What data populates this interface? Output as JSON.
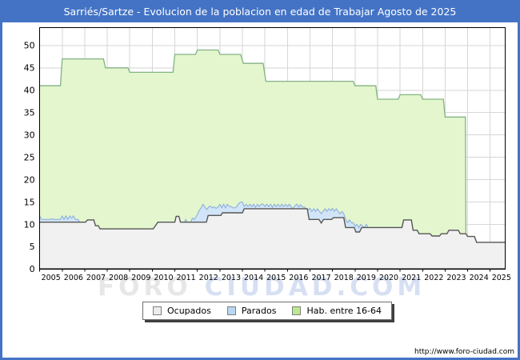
{
  "title": "Sarriés/Sartze - Evolucion de la poblacion en edad de Trabajar Agosto de 2025",
  "watermark": {
    "part1": "FORO",
    "part2": "CIUDAD.COM"
  },
  "url": "http://www.foro-ciudad.com",
  "colors": {
    "frame_blue": "#4473c5",
    "plot_border": "#000000",
    "gridline": "#d6d6d6",
    "hab_fill": "#e4f6ce",
    "hab_stroke": "#83b283",
    "parados_fill": "#d2e5f8",
    "parados_stroke": "#8cb0da",
    "ocupados_fill": "#f1f1f1",
    "ocupados_stroke": "#565656"
  },
  "legend": [
    {
      "label": "Ocupados",
      "color": "#ececec"
    },
    {
      "label": "Parados",
      "color": "#b9d6f2"
    },
    {
      "label": "Hab. entre 16-64",
      "color": "#bbe88e"
    }
  ],
  "chart_data": {
    "type": "area",
    "title": "Sarriés/Sartze - Evolucion de la poblacion en edad de Trabajar Agosto de 2025",
    "xlabel": "",
    "ylabel": "",
    "grid": true,
    "legend_position": "bottom",
    "x_axis": {
      "min": 2005,
      "max": 2025.67,
      "tick_labels": [
        2005,
        2006,
        2007,
        2008,
        2009,
        2010,
        2011,
        2012,
        2013,
        2014,
        2015,
        2016,
        2017,
        2018,
        2019,
        2020,
        2021,
        2022,
        2023,
        2024,
        2025
      ]
    },
    "y_axis": {
      "min": 0,
      "max": 54,
      "ticks": [
        0,
        5,
        10,
        15,
        20,
        25,
        30,
        35,
        40,
        45,
        50
      ]
    },
    "series": [
      {
        "name": "Hab. entre 16-64",
        "role": "area",
        "fill": "#e4f6ce",
        "stroke": "#83b283",
        "stroke_width": 1.3,
        "points": [
          [
            2005,
            41
          ],
          [
            2005.92,
            41
          ],
          [
            2006,
            47
          ],
          [
            2007.83,
            47
          ],
          [
            2007.92,
            45
          ],
          [
            2008.92,
            45
          ],
          [
            2009,
            44
          ],
          [
            2010.92,
            44
          ],
          [
            2011,
            48
          ],
          [
            2011.92,
            48
          ],
          [
            2012,
            49
          ],
          [
            2012.92,
            49
          ],
          [
            2013,
            48
          ],
          [
            2013.92,
            48
          ],
          [
            2014.04,
            46
          ],
          [
            2014.92,
            46
          ],
          [
            2015.04,
            42
          ],
          [
            2018.92,
            42
          ],
          [
            2019,
            41
          ],
          [
            2019.92,
            41
          ],
          [
            2020,
            38
          ],
          [
            2020.92,
            38
          ],
          [
            2021,
            39
          ],
          [
            2021.92,
            39
          ],
          [
            2022,
            38
          ],
          [
            2022.92,
            38
          ],
          [
            2023,
            34
          ],
          [
            2023.9,
            34
          ],
          [
            2023.93,
            0
          ]
        ]
      },
      {
        "name": "Parados",
        "role": "stacked-top-over-ocupados",
        "fill": "#d2e5f8",
        "stroke": "#8cb0da",
        "stroke_width": 1.1,
        "points": [
          [
            2005,
            11.9
          ],
          [
            2005.08,
            11.1
          ],
          [
            2005.5,
            11.1
          ],
          [
            2005.56,
            11.3
          ],
          [
            2005.64,
            11.1
          ],
          [
            2005.92,
            11.1
          ],
          [
            2006,
            11.9
          ],
          [
            2006.08,
            11.1
          ],
          [
            2006.16,
            11.9
          ],
          [
            2006.25,
            11.1
          ],
          [
            2006.33,
            11.9
          ],
          [
            2006.42,
            11.4
          ],
          [
            2006.5,
            11.9
          ],
          [
            2006.58,
            11.1
          ],
          [
            2006.7,
            11.1
          ],
          [
            2006.78,
            10.5
          ],
          [
            2007.04,
            10.5
          ],
          [
            2007.12,
            11
          ],
          [
            2007.4,
            11
          ],
          [
            2007.48,
            9.7
          ],
          [
            2007.6,
            9.7
          ],
          [
            2007.68,
            9
          ],
          [
            2010.04,
            9
          ],
          [
            2010.25,
            10.5
          ],
          [
            2011,
            10.5
          ],
          [
            2011.06,
            11.8
          ],
          [
            2011.18,
            11.8
          ],
          [
            2011.25,
            10.5
          ],
          [
            2011.42,
            10.5
          ],
          [
            2011.48,
            11.1
          ],
          [
            2011.56,
            10.5
          ],
          [
            2011.7,
            10.5
          ],
          [
            2011.78,
            11.4
          ],
          [
            2011.86,
            11.1
          ],
          [
            2011.94,
            11.7
          ],
          [
            2012,
            12.2
          ],
          [
            2012.08,
            13.1
          ],
          [
            2012.17,
            13.7
          ],
          [
            2012.25,
            14.5
          ],
          [
            2012.33,
            13.9
          ],
          [
            2012.42,
            13.3
          ],
          [
            2012.5,
            13.9
          ],
          [
            2012.58,
            14.1
          ],
          [
            2012.67,
            13.7
          ],
          [
            2012.75,
            13.9
          ],
          [
            2012.83,
            13.6
          ],
          [
            2012.92,
            13.9
          ],
          [
            2013,
            14.5
          ],
          [
            2013.08,
            13.7
          ],
          [
            2013.17,
            14.5
          ],
          [
            2013.25,
            13.7
          ],
          [
            2013.33,
            14.5
          ],
          [
            2013.42,
            14
          ],
          [
            2013.5,
            14
          ],
          [
            2013.58,
            13.7
          ],
          [
            2013.67,
            13.7
          ],
          [
            2013.75,
            14
          ],
          [
            2013.83,
            14.6
          ],
          [
            2013.92,
            15
          ],
          [
            2014,
            15
          ],
          [
            2014.08,
            14
          ],
          [
            2014.17,
            14.5
          ],
          [
            2014.25,
            14
          ],
          [
            2014.33,
            14.5
          ],
          [
            2014.42,
            14
          ],
          [
            2014.5,
            14.5
          ],
          [
            2014.58,
            13.8
          ],
          [
            2014.67,
            14.5
          ],
          [
            2014.75,
            14
          ],
          [
            2014.83,
            14.5
          ],
          [
            2014.92,
            14.5
          ],
          [
            2015,
            14
          ],
          [
            2015.08,
            14.5
          ],
          [
            2015.17,
            14
          ],
          [
            2015.25,
            14.5
          ],
          [
            2015.33,
            13.8
          ],
          [
            2015.42,
            14.5
          ],
          [
            2015.5,
            14
          ],
          [
            2015.58,
            14.5
          ],
          [
            2015.67,
            14
          ],
          [
            2015.75,
            14.5
          ],
          [
            2015.83,
            14
          ],
          [
            2015.92,
            14.5
          ],
          [
            2016,
            14
          ],
          [
            2016.08,
            14.5
          ],
          [
            2016.17,
            13.9
          ],
          [
            2016.25,
            13.5
          ],
          [
            2016.33,
            14.2
          ],
          [
            2016.42,
            14.5
          ],
          [
            2016.5,
            13.9
          ],
          [
            2016.58,
            14.4
          ],
          [
            2016.67,
            13.9
          ],
          [
            2016.75,
            13.9
          ],
          [
            2016.83,
            13.5
          ],
          [
            2016.92,
            13.2
          ],
          [
            2017,
            13.6
          ],
          [
            2017.08,
            12.9
          ],
          [
            2017.17,
            13.5
          ],
          [
            2017.25,
            12.9
          ],
          [
            2017.33,
            13.5
          ],
          [
            2017.42,
            12.9
          ],
          [
            2017.5,
            12.4
          ],
          [
            2017.58,
            12.9
          ],
          [
            2017.67,
            13.5
          ],
          [
            2017.75,
            12.9
          ],
          [
            2017.83,
            13.5
          ],
          [
            2017.92,
            13.1
          ],
          [
            2018,
            13.6
          ],
          [
            2018.08,
            12.9
          ],
          [
            2018.17,
            13.5
          ],
          [
            2018.25,
            12.9
          ],
          [
            2018.33,
            12.4
          ],
          [
            2018.42,
            12.9
          ],
          [
            2018.5,
            12.4
          ],
          [
            2018.58,
            11.1
          ],
          [
            2018.67,
            10.4
          ],
          [
            2018.75,
            11
          ],
          [
            2018.83,
            10.4
          ],
          [
            2018.92,
            10.4
          ],
          [
            2019,
            9.6
          ],
          [
            2019.08,
            10
          ],
          [
            2019.17,
            9.3
          ],
          [
            2019.25,
            10
          ],
          [
            2019.33,
            9.6
          ],
          [
            2019.42,
            9.3
          ],
          [
            2019.5,
            10
          ],
          [
            2019.58,
            9.3
          ],
          [
            2021.08,
            9.3
          ],
          [
            2021.16,
            11
          ],
          [
            2021.5,
            11
          ],
          [
            2021.58,
            8.7
          ],
          [
            2021.76,
            8.7
          ],
          [
            2021.84,
            7.9
          ],
          [
            2022.33,
            7.9
          ],
          [
            2022.42,
            7.4
          ],
          [
            2022.75,
            7.4
          ],
          [
            2022.83,
            7.9
          ],
          [
            2023.08,
            7.9
          ],
          [
            2023.17,
            8.7
          ],
          [
            2023.58,
            8.7
          ],
          [
            2023.67,
            7.9
          ],
          [
            2023.92,
            7.9
          ],
          [
            2024,
            7.3
          ],
          [
            2024.3,
            7.3
          ],
          [
            2024.4,
            6
          ],
          [
            2025.67,
            6
          ]
        ]
      },
      {
        "name": "Ocupados",
        "role": "area",
        "fill": "#f1f1f1",
        "stroke": "#565656",
        "stroke_width": 1.4,
        "points": [
          [
            2005,
            10.5
          ],
          [
            2007.04,
            10.5
          ],
          [
            2007.12,
            11
          ],
          [
            2007.4,
            11
          ],
          [
            2007.48,
            9.7
          ],
          [
            2007.6,
            9.7
          ],
          [
            2007.68,
            9
          ],
          [
            2010.04,
            9
          ],
          [
            2010.25,
            10.5
          ],
          [
            2011,
            10.5
          ],
          [
            2011.06,
            11.8
          ],
          [
            2011.18,
            11.8
          ],
          [
            2011.25,
            10.5
          ],
          [
            2012.4,
            10.5
          ],
          [
            2012.48,
            12
          ],
          [
            2013.04,
            12
          ],
          [
            2013.12,
            12.6
          ],
          [
            2014,
            12.6
          ],
          [
            2014.08,
            13.5
          ],
          [
            2016.88,
            13.5
          ],
          [
            2016.96,
            11.1
          ],
          [
            2017.4,
            11.1
          ],
          [
            2017.5,
            10.3
          ],
          [
            2017.6,
            11.1
          ],
          [
            2017.96,
            11.1
          ],
          [
            2018.04,
            11.5
          ],
          [
            2018.5,
            11.5
          ],
          [
            2018.58,
            9.3
          ],
          [
            2018.96,
            9.3
          ],
          [
            2019.04,
            8.3
          ],
          [
            2019.2,
            8.3
          ],
          [
            2019.3,
            9.3
          ],
          [
            2021.08,
            9.3
          ],
          [
            2021.16,
            11
          ],
          [
            2021.5,
            11
          ],
          [
            2021.58,
            8.7
          ],
          [
            2021.76,
            8.7
          ],
          [
            2021.84,
            7.9
          ],
          [
            2022.33,
            7.9
          ],
          [
            2022.42,
            7.4
          ],
          [
            2022.75,
            7.4
          ],
          [
            2022.83,
            7.9
          ],
          [
            2023.08,
            7.9
          ],
          [
            2023.17,
            8.7
          ],
          [
            2023.58,
            8.7
          ],
          [
            2023.67,
            7.9
          ],
          [
            2023.92,
            7.9
          ],
          [
            2024,
            7.3
          ],
          [
            2024.3,
            7.3
          ],
          [
            2024.4,
            6
          ],
          [
            2025.67,
            6
          ]
        ]
      }
    ]
  }
}
